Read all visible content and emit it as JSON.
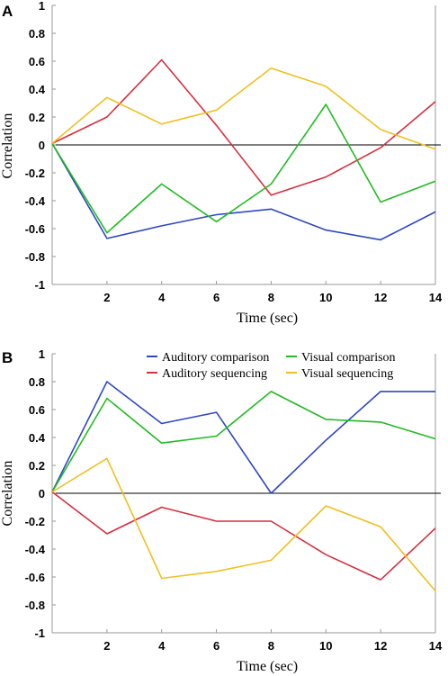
{
  "chart_data": [
    {
      "panel_label": "A",
      "type": "line",
      "xlabel": "Time (sec)",
      "ylabel": "Correlation",
      "ylim": [
        -1,
        1
      ],
      "xlim": [
        0,
        14
      ],
      "y_ticks": [
        "1",
        "0.8",
        "0.6",
        "0.4",
        "0.2",
        "0",
        "-0.2",
        "-0.4",
        "-0.6",
        "-0.8",
        "-1"
      ],
      "x_ticks": [
        "2",
        "4",
        "6",
        "8",
        "10",
        "12",
        "14"
      ],
      "zero_line": true,
      "grid": false,
      "x": [
        0,
        2,
        4,
        6,
        8,
        10,
        12,
        14
      ],
      "series": [
        {
          "color": "#2e48c2",
          "values": [
            0.01,
            -0.67,
            -0.58,
            -0.5,
            -0.46,
            -0.61,
            -0.68,
            -0.48
          ]
        },
        {
          "color": "#d62f3d",
          "values": [
            0.01,
            0.2,
            0.61,
            0.14,
            -0.36,
            -0.23,
            -0.02,
            0.31
          ]
        },
        {
          "color": "#22bb22",
          "values": [
            0.01,
            -0.63,
            -0.28,
            -0.55,
            -0.28,
            0.29,
            -0.41,
            -0.26
          ]
        },
        {
          "color": "#f0c020",
          "values": [
            0.01,
            0.34,
            0.15,
            0.25,
            0.55,
            0.42,
            0.11,
            -0.03
          ]
        }
      ]
    },
    {
      "panel_label": "B",
      "type": "line",
      "xlabel": "Time (sec)",
      "ylabel": "Correlation",
      "ylim": [
        -1,
        1
      ],
      "xlim": [
        0,
        14
      ],
      "y_ticks": [
        "1",
        "0.8",
        "0.6",
        "0.4",
        "0.2",
        "0",
        "-0.2",
        "-0.4",
        "-0.6",
        "-0.8",
        "-1"
      ],
      "x_ticks": [
        "2",
        "4",
        "6",
        "8",
        "10",
        "12",
        "14"
      ],
      "zero_line": true,
      "grid": false,
      "legend_position": "top",
      "x": [
        0,
        2,
        4,
        6,
        8,
        10,
        12,
        14
      ],
      "series": [
        {
          "name": "Auditory comparison",
          "color": "#2e48c2",
          "values": [
            0.01,
            0.8,
            0.5,
            0.58,
            0.0,
            0.38,
            0.73,
            0.73
          ]
        },
        {
          "name": "Auditory sequencing",
          "color": "#d62f3d",
          "values": [
            0.01,
            -0.29,
            -0.1,
            -0.2,
            -0.2,
            -0.44,
            -0.62,
            -0.25
          ]
        },
        {
          "name": "Visual comparison",
          "color": "#22bb22",
          "values": [
            0.01,
            0.68,
            0.36,
            0.41,
            0.73,
            0.53,
            0.51,
            0.39
          ]
        },
        {
          "name": "Visual sequencing",
          "color": "#f0c020",
          "values": [
            0.01,
            0.25,
            -0.61,
            -0.56,
            -0.48,
            -0.09,
            -0.24,
            -0.7
          ]
        }
      ]
    }
  ]
}
